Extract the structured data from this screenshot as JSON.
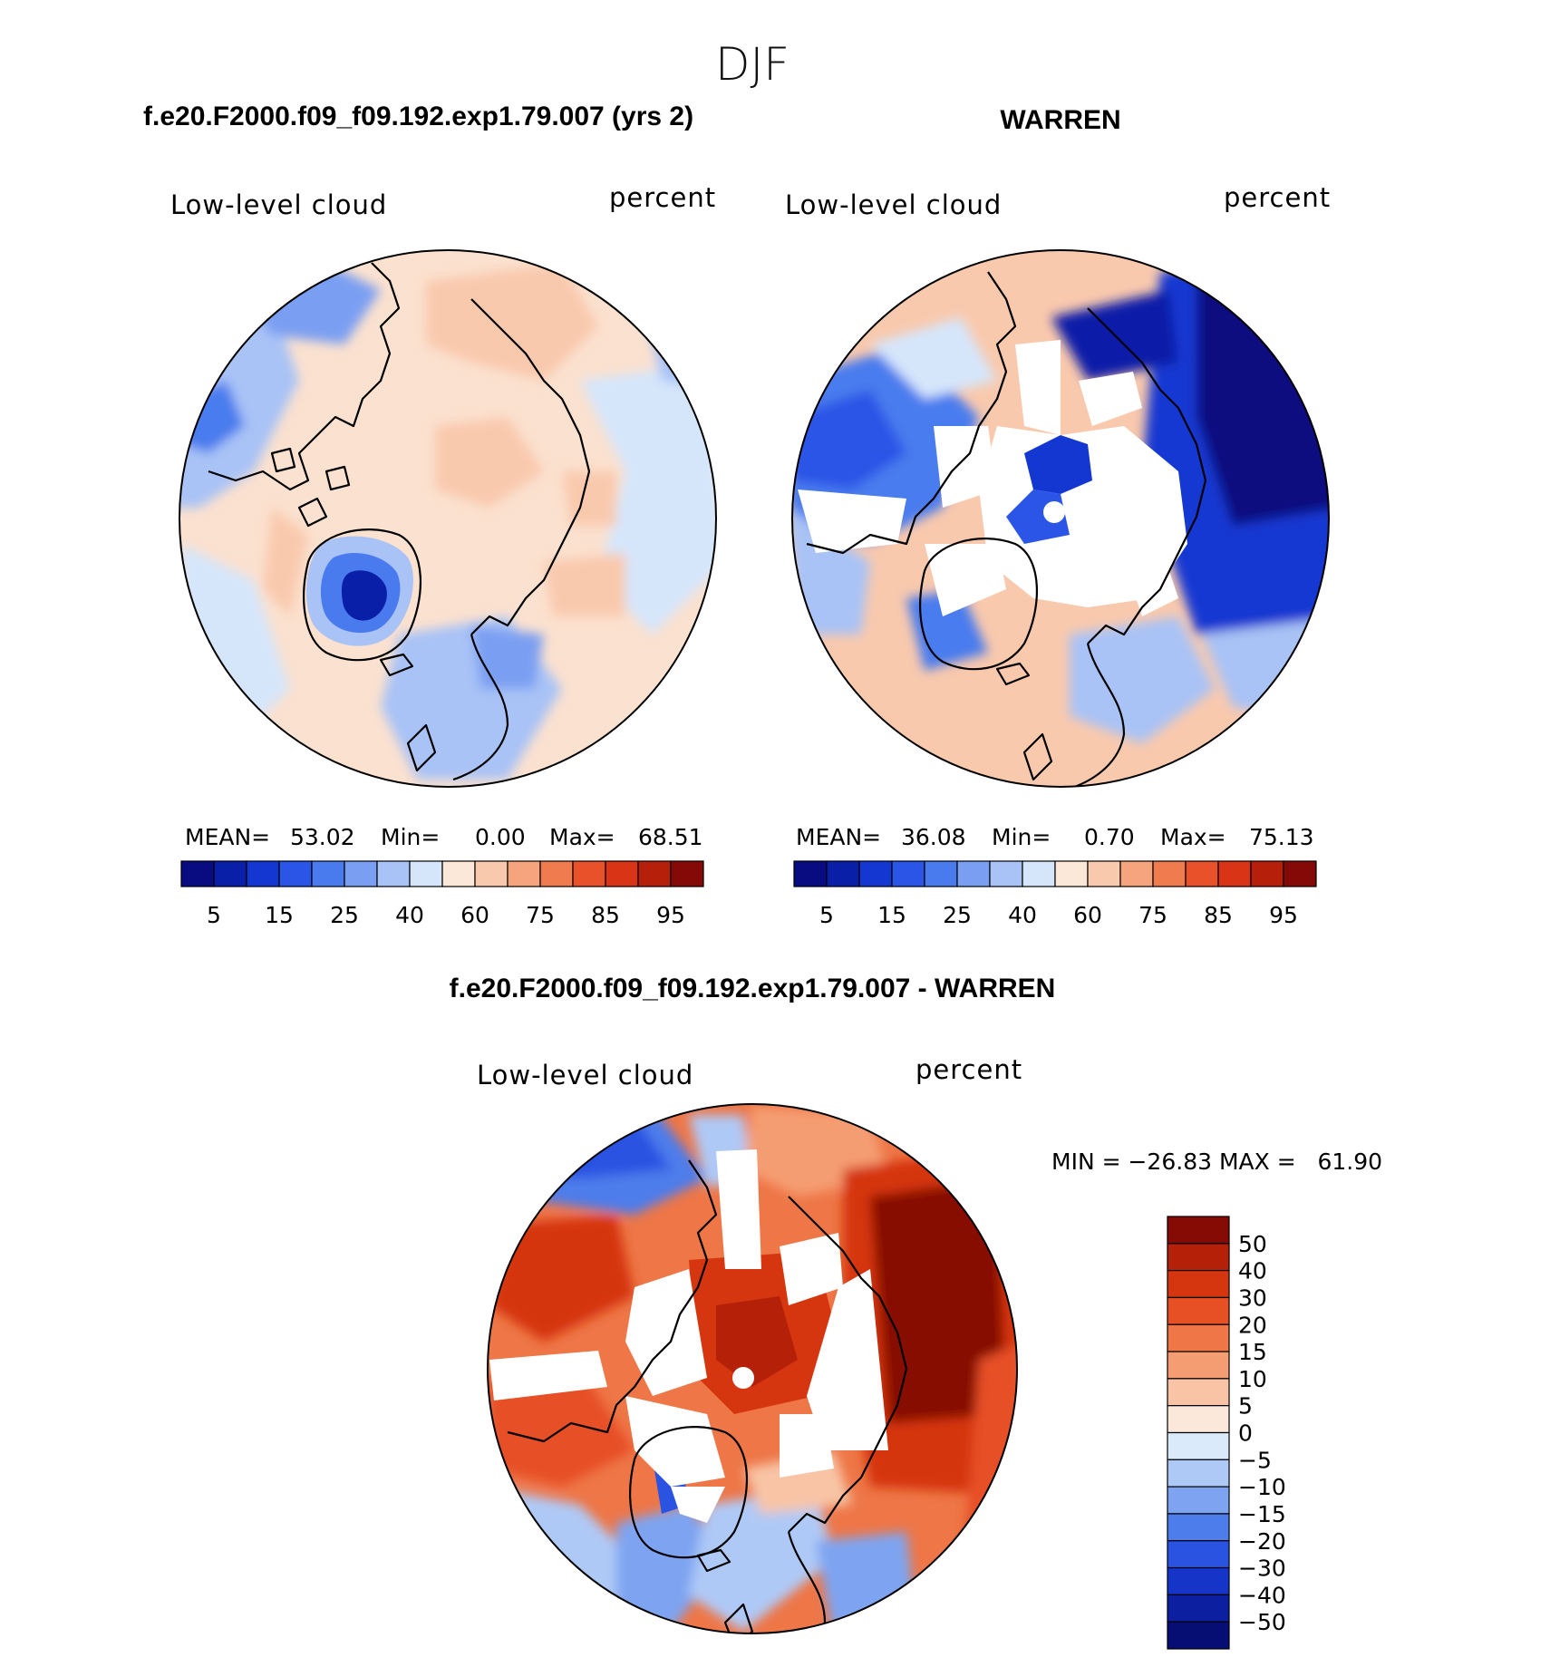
{
  "figure": {
    "season": "DJF",
    "panel_a_title": "f.e20.F2000.f09_f09.192.exp1.79.007 (yrs 2)",
    "panel_b_title": "WARREN",
    "diff_title": "f.e20.F2000.f09_f09.192.exp1.79.007 - WARREN"
  },
  "colors": {
    "abs_palette": [
      "#080c80",
      "#0a1fa8",
      "#1437d2",
      "#2a55e6",
      "#4a7bee",
      "#7a9ff2",
      "#a9c3f6",
      "#d5e6fb",
      "#fce8d9",
      "#f9c9ad",
      "#f5a47e",
      "#f07b4f",
      "#e9512a",
      "#d93415",
      "#b6200b",
      "#850a07"
    ],
    "diff_palette": [
      "#070e73",
      "#0b1fa0",
      "#1535c8",
      "#2b53e2",
      "#4d7deb",
      "#7ea4f1",
      "#afc9f6",
      "#daeafb",
      "#fce8da",
      "#f8c4a5",
      "#f59d72",
      "#ee7647",
      "#e74f25",
      "#d5360f",
      "#b52108",
      "#860b05"
    ],
    "land_outline": "#000000",
    "missing": "#ffffff"
  },
  "chart_data": [
    {
      "type": "heatmap",
      "projection": "north polar stereographic",
      "title": "f.e20.F2000.f09_f09.192.exp1.79.007 (yrs 2)",
      "left_label": "Low-level cloud",
      "right_label": "percent",
      "stats": {
        "mean_label": "MEAN=",
        "mean": "53.02",
        "min_label": "Min=",
        "min": "0.00",
        "max_label": "Max=",
        "max": "68.51"
      },
      "colorbar": {
        "orientation": "horizontal",
        "tick_labels": [
          "5",
          "15",
          "25",
          "40",
          "60",
          "75",
          "85",
          "95"
        ]
      }
    },
    {
      "type": "heatmap",
      "projection": "north polar stereographic",
      "title": "WARREN",
      "left_label": "Low-level cloud",
      "right_label": "percent",
      "stats": {
        "mean_label": "MEAN=",
        "mean": "36.08",
        "min_label": "Min=",
        "min": "0.70",
        "max_label": "Max=",
        "max": "75.13"
      },
      "colorbar": {
        "orientation": "horizontal",
        "tick_labels": [
          "5",
          "15",
          "25",
          "40",
          "60",
          "75",
          "85",
          "95"
        ]
      }
    },
    {
      "type": "heatmap",
      "projection": "north polar stereographic",
      "title": "f.e20.F2000.f09_f09.192.exp1.79.007 - WARREN",
      "left_label": "Low-level cloud",
      "right_label": "percent",
      "stats_text": "MIN = −26.83 MAX =   61.90",
      "colorbar": {
        "orientation": "vertical",
        "tick_labels": [
          "50",
          "40",
          "30",
          "20",
          "15",
          "10",
          "5",
          "0",
          "−5",
          "−10",
          "−15",
          "−20",
          "−30",
          "−40",
          "−50"
        ]
      }
    }
  ]
}
